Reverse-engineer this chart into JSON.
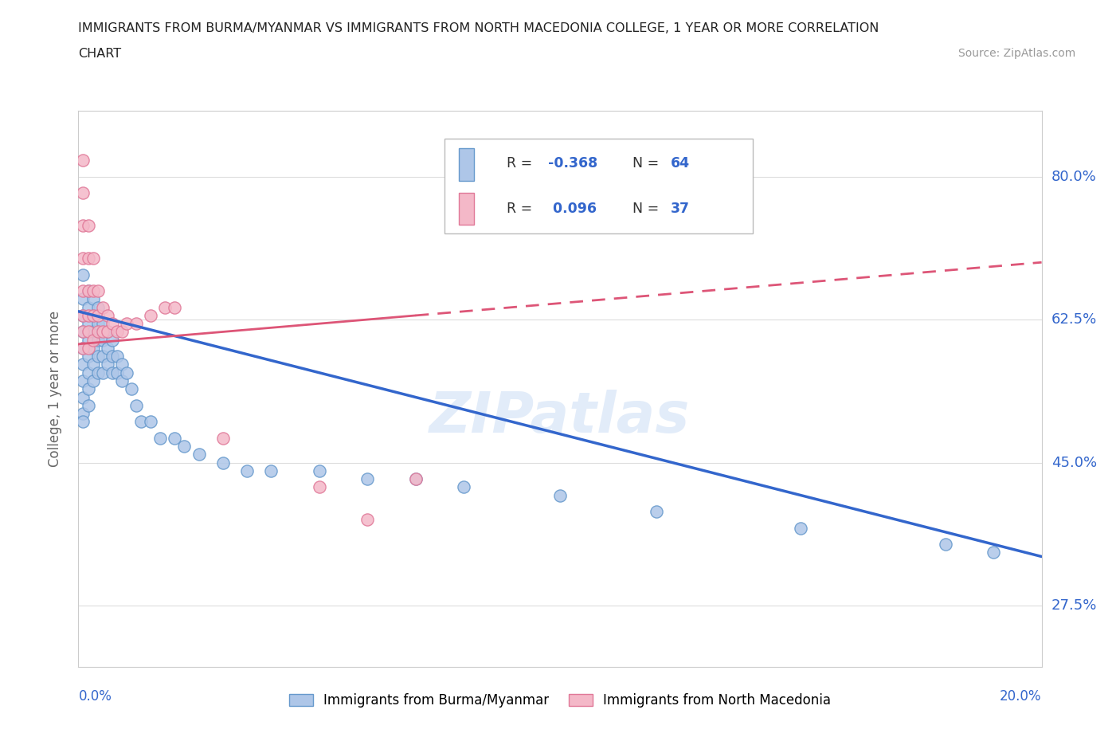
{
  "title_line1": "IMMIGRANTS FROM BURMA/MYANMAR VS IMMIGRANTS FROM NORTH MACEDONIA COLLEGE, 1 YEAR OR MORE CORRELATION",
  "title_line2": "CHART",
  "source": "Source: ZipAtlas.com",
  "ylabel": "College, 1 year or more",
  "yticks_labels": [
    "80.0%",
    "62.5%",
    "45.0%",
    "27.5%"
  ],
  "ytick_vals": [
    0.8,
    0.625,
    0.45,
    0.275
  ],
  "xmin": 0.0,
  "xmax": 0.2,
  "ymin": 0.2,
  "ymax": 0.88,
  "blue_color": "#aec6e8",
  "blue_edge": "#6699cc",
  "pink_color": "#f4b8c8",
  "pink_edge": "#e07898",
  "blue_line_color": "#3366cc",
  "pink_line_color": "#dd5577",
  "R_blue": -0.368,
  "N_blue": 64,
  "R_pink": 0.096,
  "N_pink": 37,
  "legend_label_blue": "Immigrants from Burma/Myanmar",
  "legend_label_pink": "Immigrants from North Macedonia",
  "blue_trend_x0": 0.0,
  "blue_trend_y0": 0.635,
  "blue_trend_x1": 0.2,
  "blue_trend_y1": 0.335,
  "pink_trend_x0": 0.0,
  "pink_trend_y0": 0.595,
  "pink_trend_x1": 0.2,
  "pink_trend_y1": 0.695,
  "blue_x": [
    0.001,
    0.001,
    0.001,
    0.001,
    0.001,
    0.001,
    0.001,
    0.001,
    0.001,
    0.001,
    0.002,
    0.002,
    0.002,
    0.002,
    0.002,
    0.002,
    0.002,
    0.002,
    0.003,
    0.003,
    0.003,
    0.003,
    0.003,
    0.003,
    0.004,
    0.004,
    0.004,
    0.004,
    0.004,
    0.005,
    0.005,
    0.005,
    0.005,
    0.006,
    0.006,
    0.006,
    0.007,
    0.007,
    0.007,
    0.008,
    0.008,
    0.009,
    0.009,
    0.01,
    0.011,
    0.012,
    0.013,
    0.015,
    0.017,
    0.02,
    0.022,
    0.025,
    0.03,
    0.035,
    0.04,
    0.05,
    0.06,
    0.07,
    0.08,
    0.1,
    0.12,
    0.15,
    0.18,
    0.19
  ],
  "blue_y": [
    0.68,
    0.65,
    0.63,
    0.61,
    0.59,
    0.57,
    0.55,
    0.53,
    0.51,
    0.5,
    0.66,
    0.64,
    0.62,
    0.6,
    0.58,
    0.56,
    0.54,
    0.52,
    0.65,
    0.63,
    0.61,
    0.59,
    0.57,
    0.55,
    0.64,
    0.62,
    0.6,
    0.58,
    0.56,
    0.62,
    0.6,
    0.58,
    0.56,
    0.61,
    0.59,
    0.57,
    0.6,
    0.58,
    0.56,
    0.58,
    0.56,
    0.57,
    0.55,
    0.56,
    0.54,
    0.52,
    0.5,
    0.5,
    0.48,
    0.48,
    0.47,
    0.46,
    0.45,
    0.44,
    0.44,
    0.44,
    0.43,
    0.43,
    0.42,
    0.41,
    0.39,
    0.37,
    0.35,
    0.34
  ],
  "pink_x": [
    0.001,
    0.001,
    0.001,
    0.001,
    0.001,
    0.001,
    0.001,
    0.001,
    0.002,
    0.002,
    0.002,
    0.002,
    0.002,
    0.002,
    0.003,
    0.003,
    0.003,
    0.003,
    0.004,
    0.004,
    0.004,
    0.005,
    0.005,
    0.006,
    0.006,
    0.007,
    0.008,
    0.009,
    0.01,
    0.012,
    0.015,
    0.018,
    0.02,
    0.03,
    0.05,
    0.06,
    0.07
  ],
  "pink_y": [
    0.82,
    0.78,
    0.74,
    0.7,
    0.66,
    0.63,
    0.61,
    0.59,
    0.74,
    0.7,
    0.66,
    0.63,
    0.61,
    0.59,
    0.7,
    0.66,
    0.63,
    0.6,
    0.66,
    0.63,
    0.61,
    0.64,
    0.61,
    0.63,
    0.61,
    0.62,
    0.61,
    0.61,
    0.62,
    0.62,
    0.63,
    0.64,
    0.64,
    0.48,
    0.42,
    0.38,
    0.43
  ]
}
